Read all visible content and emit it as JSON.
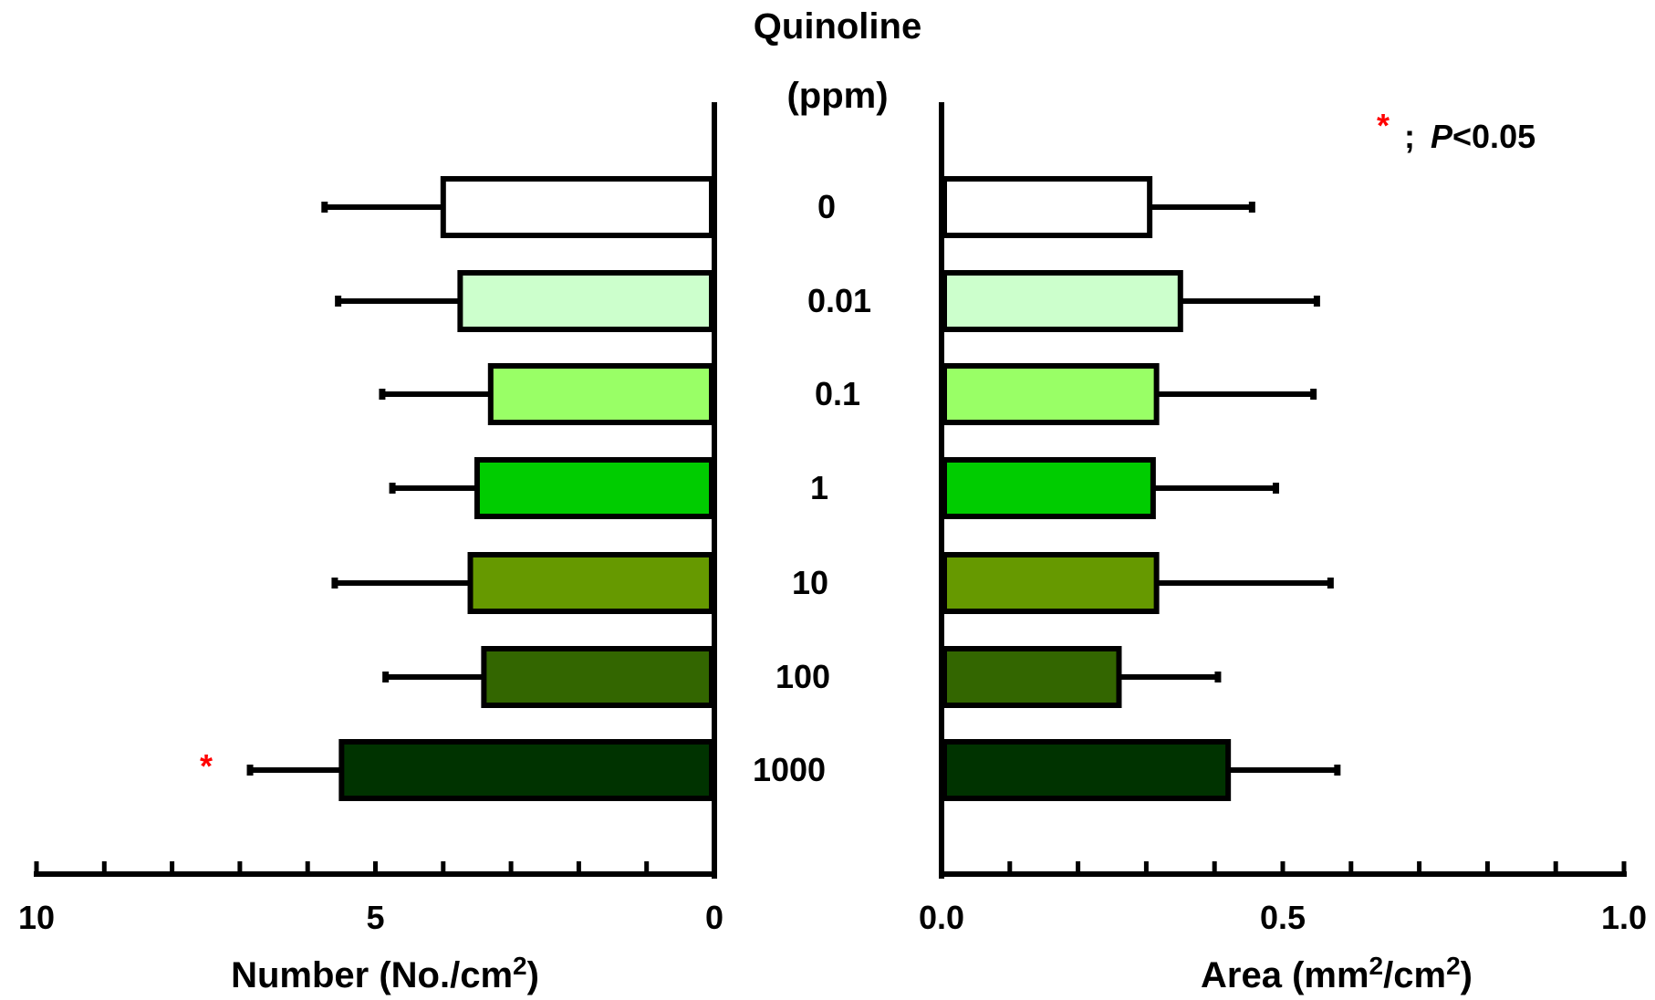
{
  "chart_data": [
    {
      "type": "bar",
      "orientation": "horizontal",
      "direction": "leftward",
      "xlabel": "Number (No./cm",
      "xlabel_sup": "2",
      "xlabel_end": ")",
      "xlim": [
        0,
        10
      ],
      "tick_labels": [
        "10",
        "5",
        "0"
      ],
      "tick_label_values": [
        10,
        5,
        0
      ],
      "minor_tick_step": 1,
      "values": [
        4.0,
        3.75,
        3.3,
        3.5,
        3.6,
        3.4,
        5.5
      ],
      "errors": [
        1.75,
        1.8,
        1.6,
        1.25,
        2.0,
        1.45,
        1.35
      ],
      "significant": [
        false,
        false,
        false,
        false,
        false,
        false,
        true
      ]
    },
    {
      "type": "bar",
      "orientation": "horizontal",
      "direction": "rightward",
      "xlabel": "Area (mm",
      "xlabel_sup": "2",
      "xlabel_mid": "/cm",
      "xlabel_sup2": "2",
      "xlabel_end": ")",
      "xlim": [
        0,
        1.0
      ],
      "tick_labels": [
        "0.0",
        "0.5",
        "1.0"
      ],
      "tick_label_values": [
        0,
        0.5,
        1.0
      ],
      "minor_tick_step": 0.1,
      "values": [
        0.305,
        0.35,
        0.315,
        0.31,
        0.315,
        0.26,
        0.42
      ],
      "errors": [
        0.15,
        0.2,
        0.23,
        0.18,
        0.255,
        0.145,
        0.16
      ],
      "significant": [
        false,
        false,
        false,
        false,
        false,
        false,
        false
      ]
    }
  ],
  "shared": {
    "title_line1": "Quinoline",
    "title_line2": "(ppm)",
    "categories": [
      "0",
      "0.01",
      "0.1",
      "1",
      "10",
      "100",
      "1000"
    ],
    "colors": [
      "#ffffff",
      "#ccffcc",
      "#99ff66",
      "#00cc00",
      "#669900",
      "#336600",
      "#003300"
    ],
    "legend": {
      "marker": "*",
      "separator": ";",
      "p_symbol": "P",
      "threshold": "<0.05",
      "marker_color": "#ff0000"
    }
  }
}
